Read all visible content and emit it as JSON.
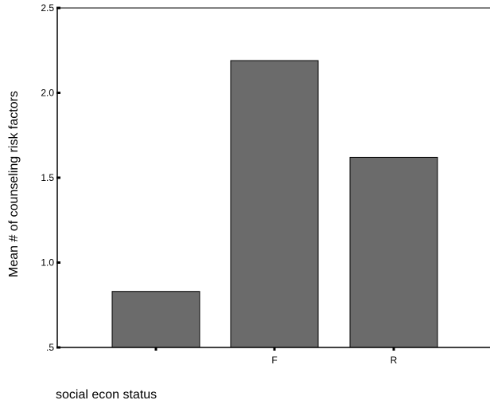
{
  "chart_data": {
    "type": "bar",
    "title": "",
    "xlabel": "social econ status",
    "ylabel": "Mean # of counseling risk factors",
    "categories": [
      "",
      "F",
      "R"
    ],
    "values": [
      0.83,
      2.19,
      1.62
    ],
    "ylim": [
      0.5,
      2.5
    ],
    "y_ticks": [
      {
        "value": 0.5,
        "label": ".5"
      },
      {
        "value": 1.0,
        "label": "1.0"
      },
      {
        "value": 1.5,
        "label": "1.5"
      },
      {
        "value": 2.0,
        "label": "2.0"
      },
      {
        "value": 2.5,
        "label": "2.5"
      }
    ],
    "grid": false,
    "legend": "none",
    "colors": {
      "bar_fill": "#6b6b6b",
      "bar_stroke": "#000000",
      "axis": "#000000"
    }
  }
}
